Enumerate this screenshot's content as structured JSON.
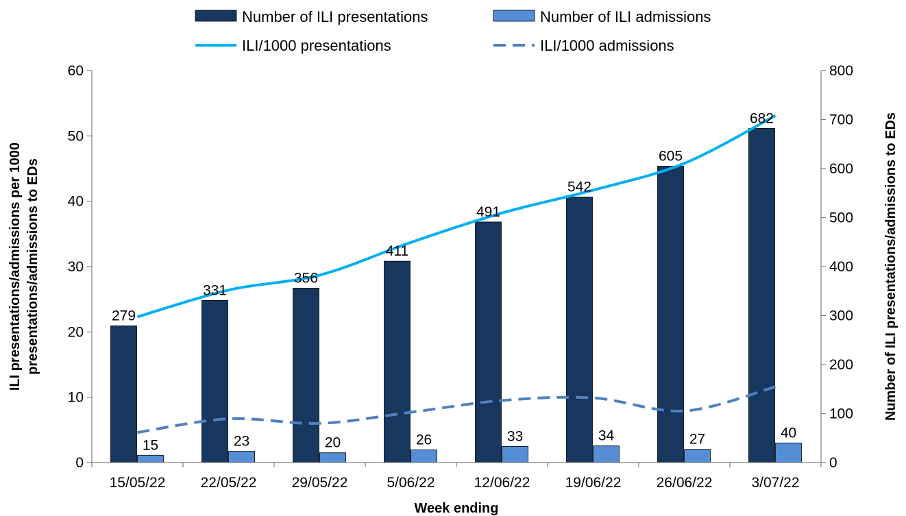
{
  "chart_data": {
    "type": "bar",
    "categories": [
      "15/05/22",
      "22/05/22",
      "29/05/22",
      "5/06/22",
      "12/06/22",
      "19/06/22",
      "26/06/22",
      "3/07/22"
    ],
    "series": [
      {
        "name": "Number of ILI presentations",
        "type": "bar",
        "axis": "right",
        "color": "#17375e",
        "values": [
          279,
          331,
          356,
          411,
          491,
          542,
          605,
          682
        ]
      },
      {
        "name": "Number of ILI admissions",
        "type": "bar",
        "axis": "right",
        "color": "#558ed5",
        "values": [
          15,
          23,
          20,
          26,
          33,
          34,
          27,
          40
        ]
      },
      {
        "name": "ILI/1000 presentations",
        "type": "line",
        "axis": "left",
        "color": "#00b0f0",
        "style": "solid",
        "values": [
          22.3,
          26.4,
          28.7,
          33.7,
          38.2,
          41.7,
          45.8,
          53.1
        ]
      },
      {
        "name": "ILI/1000 admissions",
        "type": "line",
        "axis": "left",
        "color": "#4f81bd",
        "style": "dashed",
        "values": [
          4.6,
          6.7,
          6.0,
          7.7,
          9.5,
          9.9,
          7.9,
          11.6
        ]
      }
    ],
    "xlabel": "Week ending",
    "ylabel_left": "ILI presentations/admissions per 1000 presentations/admissions to EDs",
    "ylabel_left_lines": [
      "ILI presentations/admissions per 1000",
      "presentations/admissions to EDs"
    ],
    "ylabel_right": "Number of ILI presentations/admissions to EDs",
    "ylim_left": [
      0,
      60
    ],
    "ylim_right": [
      0,
      800
    ],
    "yticks_left": [
      "0",
      "10",
      "20",
      "30",
      "40",
      "50",
      "60"
    ],
    "yticks_right": [
      "0",
      "100",
      "200",
      "300",
      "400",
      "500",
      "600",
      "700",
      "800"
    ],
    "grid": false,
    "legend_position": "top"
  }
}
